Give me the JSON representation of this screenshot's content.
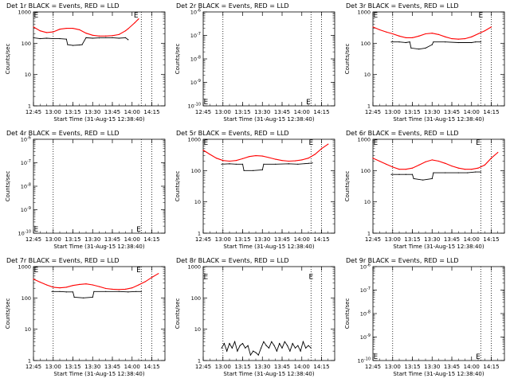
{
  "page": {
    "background": "#ffffff",
    "axis_color": "#000000",
    "events_color": "#000000",
    "lld_color": "#ff0000"
  },
  "chart_data": [
    {
      "type": "line",
      "title": "Det 1r BLACK = Events, RED = LLD",
      "xlabel": "Start Time (31-Aug-15 12:38:40)",
      "ylabel": "Counts/sec",
      "yscale": "log",
      "ylim": [
        1,
        1000
      ],
      "yticks": [
        1,
        10,
        100,
        1000
      ],
      "ytick_labels": [
        "1",
        "10",
        "100",
        "1000"
      ],
      "xlim": [
        0,
        100
      ],
      "xticks": [
        {
          "x": 0,
          "label": "12:45"
        },
        {
          "x": 15,
          "label": "13:00"
        },
        {
          "x": 30,
          "label": "13:15"
        },
        {
          "x": 45,
          "label": "13:30"
        },
        {
          "x": 60,
          "label": "13:45"
        },
        {
          "x": 75,
          "label": "14:00"
        },
        {
          "x": 90,
          "label": "14:15"
        }
      ],
      "vlines": [
        15,
        82,
        90
      ],
      "markers": [
        {
          "x": 2,
          "y": 1000,
          "label": "E"
        },
        {
          "x": 78,
          "y": 1000,
          "label": "E"
        }
      ],
      "series": [
        {
          "name": "Events",
          "color": "#000000",
          "x": [
            0,
            5,
            10,
            15,
            20,
            25,
            26,
            30,
            35,
            37,
            40,
            45,
            50,
            55,
            60,
            65,
            70,
            72
          ],
          "y": [
            150,
            140,
            145,
            140,
            140,
            135,
            90,
            85,
            88,
            90,
            150,
            145,
            148,
            150,
            150,
            145,
            150,
            130
          ]
        },
        {
          "name": "LLD",
          "color": "#ff0000",
          "x": [
            0,
            5,
            10,
            15,
            20,
            25,
            30,
            35,
            40,
            45,
            50,
            55,
            60,
            65,
            70,
            72,
            77,
            80
          ],
          "y": [
            330,
            250,
            220,
            230,
            280,
            300,
            300,
            270,
            210,
            180,
            170,
            170,
            175,
            190,
            250,
            290,
            450,
            600
          ]
        }
      ]
    },
    {
      "type": "line",
      "title": "Det 2r BLACK = Events, RED = LLD",
      "xlabel": "Start Time (31-Aug-15 12:38:40)",
      "ylabel": "Counts/sec",
      "yscale": "log",
      "ylim": [
        1e-10,
        1e-06
      ],
      "yticks": [
        1e-10,
        1e-09,
        1e-08,
        1e-07,
        1e-06
      ],
      "ytick_labels": [
        "10^-10",
        "10^-9",
        "10^-8",
        "10^-7",
        "10^-6"
      ],
      "xlim": [
        0,
        100
      ],
      "xticks": [
        {
          "x": 0,
          "label": "12:45"
        },
        {
          "x": 15,
          "label": "13:00"
        },
        {
          "x": 30,
          "label": "13:15"
        },
        {
          "x": 45,
          "label": "13:30"
        },
        {
          "x": 60,
          "label": "13:45"
        },
        {
          "x": 75,
          "label": "14:00"
        },
        {
          "x": 90,
          "label": "14:15"
        }
      ],
      "vlines": [
        15,
        82,
        90
      ],
      "markers": [
        {
          "x": 2,
          "y": 2e-10,
          "label": "E"
        },
        {
          "x": 80,
          "y": 2e-10,
          "label": "E"
        }
      ],
      "series": []
    },
    {
      "type": "line",
      "title": "Det 3r BLACK = Events, RED = LLD",
      "xlabel": "Start Time (31-Aug-15 12:38:40)",
      "ylabel": "Counts/sec",
      "yscale": "log",
      "ylim": [
        1,
        1000
      ],
      "yticks": [
        1,
        10,
        100,
        1000
      ],
      "ytick_labels": [
        "1",
        "10",
        "100",
        "1000"
      ],
      "xlim": [
        0,
        100
      ],
      "xticks": [
        {
          "x": 0,
          "label": "12:45"
        },
        {
          "x": 15,
          "label": "13:00"
        },
        {
          "x": 30,
          "label": "13:15"
        },
        {
          "x": 45,
          "label": "13:30"
        },
        {
          "x": 60,
          "label": "13:45"
        },
        {
          "x": 75,
          "label": "14:00"
        },
        {
          "x": 90,
          "label": "14:15"
        }
      ],
      "vlines": [
        15,
        82,
        90
      ],
      "markers": [
        {
          "x": 2,
          "y": 1000,
          "label": "E"
        },
        {
          "x": 82,
          "y": 1000,
          "label": "E"
        }
      ],
      "series": [
        {
          "name": "Events",
          "color": "#000000",
          "x": [
            14,
            20,
            25,
            28,
            29,
            35,
            40,
            45,
            46,
            55,
            65,
            75,
            78,
            82
          ],
          "y": [
            110,
            110,
            105,
            110,
            70,
            65,
            70,
            90,
            110,
            110,
            105,
            105,
            110,
            110
          ]
        },
        {
          "name": "LLD",
          "color": "#ff0000",
          "x": [
            0,
            5,
            10,
            15,
            20,
            25,
            30,
            35,
            40,
            45,
            50,
            55,
            60,
            65,
            70,
            75,
            80,
            85,
            90
          ],
          "y": [
            330,
            270,
            230,
            200,
            170,
            150,
            150,
            170,
            200,
            210,
            190,
            160,
            140,
            135,
            140,
            160,
            200,
            250,
            330
          ]
        }
      ]
    },
    {
      "type": "line",
      "title": "Det 4r BLACK = Events, RED = LLD",
      "xlabel": "Start Time (31-Aug-15 12:38:40)",
      "ylabel": "Counts/sec",
      "yscale": "log",
      "ylim": [
        1e-10,
        1e-06
      ],
      "yticks": [
        1e-10,
        1e-09,
        1e-08,
        1e-07,
        1e-06
      ],
      "ytick_labels": [
        "10^-10",
        "10^-9",
        "10^-8",
        "10^-7",
        "10^-6"
      ],
      "xlim": [
        0,
        100
      ],
      "xticks": [
        {
          "x": 0,
          "label": "12:45"
        },
        {
          "x": 15,
          "label": "13:00"
        },
        {
          "x": 30,
          "label": "13:15"
        },
        {
          "x": 45,
          "label": "13:30"
        },
        {
          "x": 60,
          "label": "13:45"
        },
        {
          "x": 75,
          "label": "14:00"
        },
        {
          "x": 90,
          "label": "14:15"
        }
      ],
      "vlines": [
        15,
        82,
        90
      ],
      "markers": [
        {
          "x": 2,
          "y": 2e-10,
          "label": "E"
        },
        {
          "x": 80,
          "y": 2e-10,
          "label": "E"
        }
      ],
      "series": []
    },
    {
      "type": "line",
      "title": "Det 5r BLACK = Events, RED = LLD",
      "xlabel": "Start Time (31-Aug-15 12:38:40)",
      "ylabel": "Counts/sec",
      "yscale": "log",
      "ylim": [
        1,
        1000
      ],
      "yticks": [
        1,
        10,
        100,
        1000
      ],
      "ytick_labels": [
        "1",
        "10",
        "100",
        "1000"
      ],
      "xlim": [
        0,
        100
      ],
      "xticks": [
        {
          "x": 0,
          "label": "12:45"
        },
        {
          "x": 15,
          "label": "13:00"
        },
        {
          "x": 30,
          "label": "13:15"
        },
        {
          "x": 45,
          "label": "13:30"
        },
        {
          "x": 60,
          "label": "13:45"
        },
        {
          "x": 75,
          "label": "14:00"
        },
        {
          "x": 90,
          "label": "14:15"
        }
      ],
      "vlines": [
        15,
        82,
        90
      ],
      "markers": [
        {
          "x": 2,
          "y": 1000,
          "label": "E"
        },
        {
          "x": 82,
          "y": 1000,
          "label": "E"
        }
      ],
      "series": [
        {
          "name": "Events",
          "color": "#000000",
          "x": [
            14,
            20,
            25,
            30,
            31,
            38,
            45,
            46,
            55,
            65,
            72,
            80,
            83
          ],
          "y": [
            160,
            165,
            160,
            160,
            100,
            100,
            105,
            160,
            160,
            165,
            160,
            170,
            175
          ]
        },
        {
          "name": "LLD",
          "color": "#ff0000",
          "x": [
            0,
            5,
            10,
            15,
            20,
            25,
            30,
            35,
            40,
            45,
            50,
            55,
            60,
            65,
            70,
            75,
            80,
            85,
            90,
            95
          ],
          "y": [
            450,
            330,
            250,
            210,
            200,
            210,
            240,
            280,
            300,
            290,
            260,
            230,
            210,
            200,
            205,
            220,
            250,
            330,
            500,
            700
          ]
        }
      ]
    },
    {
      "type": "line",
      "title": "Det 6r BLACK = Events, RED = LLD",
      "xlabel": "Start Time (31-Aug-15 12:38:40)",
      "ylabel": "Counts/sec",
      "yscale": "log",
      "ylim": [
        1,
        1000
      ],
      "yticks": [
        1,
        10,
        100,
        1000
      ],
      "ytick_labels": [
        "1",
        "10",
        "100",
        "1000"
      ],
      "xlim": [
        0,
        100
      ],
      "xticks": [
        {
          "x": 0,
          "label": "12:45"
        },
        {
          "x": 15,
          "label": "13:00"
        },
        {
          "x": 30,
          "label": "13:15"
        },
        {
          "x": 45,
          "label": "13:30"
        },
        {
          "x": 60,
          "label": "13:45"
        },
        {
          "x": 75,
          "label": "14:00"
        },
        {
          "x": 90,
          "label": "14:15"
        }
      ],
      "vlines": [
        15,
        82,
        90
      ],
      "markers": [
        {
          "x": 2,
          "y": 1000,
          "label": "E"
        },
        {
          "x": 80,
          "y": 1000,
          "label": "E"
        }
      ],
      "series": [
        {
          "name": "Events",
          "color": "#000000",
          "x": [
            14,
            20,
            25,
            30,
            31,
            38,
            45,
            46,
            55,
            65,
            72,
            78,
            82
          ],
          "y": [
            75,
            75,
            75,
            75,
            55,
            50,
            55,
            85,
            85,
            85,
            85,
            90,
            90
          ]
        },
        {
          "name": "LLD",
          "color": "#ff0000",
          "x": [
            0,
            5,
            10,
            15,
            20,
            25,
            30,
            35,
            40,
            45,
            50,
            55,
            60,
            65,
            70,
            75,
            80,
            85,
            90,
            95
          ],
          "y": [
            250,
            200,
            160,
            130,
            110,
            110,
            120,
            150,
            190,
            220,
            200,
            170,
            140,
            120,
            110,
            110,
            120,
            150,
            250,
            380
          ]
        }
      ]
    },
    {
      "type": "line",
      "title": "Det 7r BLACK = Events, RED = LLD",
      "xlabel": "Start Time (31-Aug-15 12:38:40)",
      "ylabel": "Counts/sec",
      "yscale": "log",
      "ylim": [
        1,
        1000
      ],
      "yticks": [
        1,
        10,
        100,
        1000
      ],
      "ytick_labels": [
        "1",
        "10",
        "100",
        "1000"
      ],
      "xlim": [
        0,
        100
      ],
      "xticks": [
        {
          "x": 0,
          "label": "12:45"
        },
        {
          "x": 15,
          "label": "13:00"
        },
        {
          "x": 30,
          "label": "13:15"
        },
        {
          "x": 45,
          "label": "13:30"
        },
        {
          "x": 60,
          "label": "13:45"
        },
        {
          "x": 75,
          "label": "14:00"
        },
        {
          "x": 90,
          "label": "14:15"
        }
      ],
      "vlines": [
        15,
        82,
        90
      ],
      "markers": [
        {
          "x": 2,
          "y": 1000,
          "label": "E"
        },
        {
          "x": 80,
          "y": 1000,
          "label": "E"
        }
      ],
      "series": [
        {
          "name": "Events",
          "color": "#000000",
          "x": [
            14,
            20,
            25,
            30,
            31,
            38,
            45,
            46,
            55,
            65,
            72,
            78,
            82
          ],
          "y": [
            160,
            160,
            155,
            155,
            105,
            100,
            105,
            160,
            160,
            160,
            155,
            160,
            160
          ]
        },
        {
          "name": "LLD",
          "color": "#ff0000",
          "x": [
            0,
            5,
            10,
            15,
            20,
            25,
            30,
            35,
            40,
            45,
            50,
            55,
            60,
            65,
            70,
            75,
            80,
            85,
            90,
            95
          ],
          "y": [
            400,
            320,
            260,
            220,
            210,
            220,
            250,
            270,
            280,
            260,
            230,
            200,
            190,
            185,
            190,
            210,
            260,
            330,
            450,
            600
          ]
        }
      ]
    },
    {
      "type": "line",
      "title": "Det 8r BLACK = Events, RED = LLD",
      "xlabel": "Start Time (31-Aug-15 12:38:40)",
      "ylabel": "Counts/sec",
      "yscale": "log",
      "ylim": [
        1,
        1000
      ],
      "yticks": [
        1,
        10,
        100,
        1000
      ],
      "ytick_labels": [
        "1",
        "10",
        "100",
        "1000"
      ],
      "xlim": [
        0,
        100
      ],
      "xticks": [
        {
          "x": 0,
          "label": "12:45"
        },
        {
          "x": 15,
          "label": "13:00"
        },
        {
          "x": 30,
          "label": "13:15"
        },
        {
          "x": 45,
          "label": "13:30"
        },
        {
          "x": 60,
          "label": "13:45"
        },
        {
          "x": 75,
          "label": "14:00"
        },
        {
          "x": 90,
          "label": "14:15"
        }
      ],
      "vlines": [
        15,
        82,
        90
      ],
      "markers": [
        {
          "x": 2,
          "y": 600,
          "label": "E"
        },
        {
          "x": 82,
          "y": 600,
          "label": "E"
        }
      ],
      "series": [
        {
          "name": "Events",
          "color": "#000000",
          "x": [
            14,
            16,
            18,
            20,
            22,
            24,
            26,
            28,
            30,
            32,
            34,
            36,
            38,
            40,
            42,
            44,
            46,
            48,
            50,
            52,
            54,
            56,
            58,
            60,
            62,
            64,
            66,
            68,
            70,
            72,
            74,
            76,
            78,
            80,
            82
          ],
          "y": [
            2.5,
            3.5,
            2,
            3.5,
            2.5,
            4,
            2,
            3,
            3.5,
            2.5,
            3,
            1.5,
            2,
            1.8,
            1.5,
            2.5,
            4,
            3,
            2.5,
            4,
            3,
            2,
            3.5,
            2.5,
            4,
            3,
            2,
            3.5,
            2.5,
            3,
            2,
            4,
            2.5,
            3,
            2.5
          ]
        }
      ]
    },
    {
      "type": "line",
      "title": "Det 9r BLACK = Events, RED = LLD",
      "xlabel": "Start Time (31-Aug-15 12:38:40)",
      "ylabel": "Counts/sec",
      "yscale": "log",
      "ylim": [
        1e-10,
        1e-06
      ],
      "yticks": [
        1e-10,
        1e-09,
        1e-08,
        1e-07,
        1e-06
      ],
      "ytick_labels": [
        "10^-10",
        "10^-9",
        "10^-8",
        "10^-7",
        "10^-6"
      ],
      "xlim": [
        0,
        100
      ],
      "xticks": [
        {
          "x": 0,
          "label": "12:45"
        },
        {
          "x": 15,
          "label": "13:00"
        },
        {
          "x": 30,
          "label": "13:15"
        },
        {
          "x": 45,
          "label": "13:30"
        },
        {
          "x": 60,
          "label": "13:45"
        },
        {
          "x": 75,
          "label": "14:00"
        },
        {
          "x": 90,
          "label": "14:15"
        }
      ],
      "vlines": [
        15,
        82,
        90
      ],
      "markers": [
        {
          "x": 2,
          "y": 2e-10,
          "label": "E"
        },
        {
          "x": 80,
          "y": 2e-10,
          "label": "E"
        }
      ],
      "series": []
    }
  ]
}
